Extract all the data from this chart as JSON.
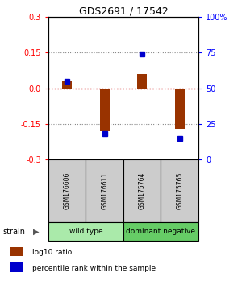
{
  "title": "GDS2691 / 17542",
  "samples": [
    "GSM176606",
    "GSM176611",
    "GSM175764",
    "GSM175765"
  ],
  "log10_ratio": [
    0.03,
    -0.18,
    0.06,
    -0.17
  ],
  "percentile_rank_pct": [
    55,
    18,
    74,
    15
  ],
  "groups": [
    {
      "label": "wild type",
      "samples_idx": [
        0,
        1
      ],
      "color": "#aaeaaa"
    },
    {
      "label": "dominant negative",
      "samples_idx": [
        2,
        3
      ],
      "color": "#66cc66"
    }
  ],
  "ylim": [
    -0.3,
    0.3
  ],
  "right_ylim": [
    0,
    100
  ],
  "bar_color": "#993300",
  "dot_color": "#0000cc",
  "hline_color": "#cc0000",
  "dotted_color": "#888888",
  "label_bg": "#cccccc",
  "yticks_left": [
    -0.3,
    -0.15,
    0.0,
    0.15,
    0.3
  ],
  "yticks_right": [
    0,
    25,
    50,
    75,
    100
  ],
  "legend_log10": "log10 ratio",
  "legend_pct": "percentile rank within the sample",
  "group_row_label": "strain",
  "bar_width": 0.25
}
